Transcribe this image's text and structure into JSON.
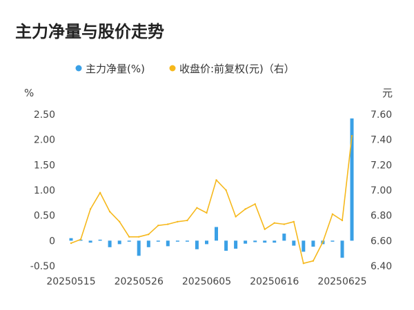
{
  "chart_data": {
    "type": "bar+line",
    "title": "主力净量与股价走势",
    "legend": {
      "position": "top-center",
      "items": [
        {
          "label": "主力净量(%)",
          "color": "#3aa0e6",
          "marker": "circle"
        },
        {
          "label": "收盘价:前复权(元)（右）",
          "color": "#f6b81b",
          "marker": "circle"
        }
      ]
    },
    "left_axis": {
      "unit": "%",
      "ticks": [
        "2.50",
        "2.00",
        "1.50",
        "1.00",
        "0.50",
        "0",
        "-0.50"
      ],
      "min": -0.5,
      "max": 2.5
    },
    "right_axis": {
      "unit": "元",
      "ticks": [
        "7.60",
        "7.40",
        "7.20",
        "7.00",
        "6.80",
        "6.60",
        "6.40"
      ],
      "min": 6.4,
      "max": 7.6
    },
    "x_tick_labels": [
      "20250515",
      "20250526",
      "20250605",
      "20250616",
      "20250625"
    ],
    "grid": false,
    "series": [
      {
        "name": "主力净量(%)",
        "type": "bar",
        "axis": "left",
        "color": "#3aa0e6",
        "values": [
          0.05,
          0.02,
          -0.04,
          0.02,
          -0.13,
          -0.07,
          -0.02,
          -0.3,
          -0.13,
          -0.02,
          -0.11,
          0.0,
          -0.01,
          -0.17,
          -0.07,
          0.27,
          -0.2,
          -0.16,
          -0.06,
          -0.03,
          -0.04,
          -0.04,
          0.14,
          -0.1,
          -0.22,
          -0.12,
          -0.07,
          -0.01,
          -0.34,
          2.42
        ]
      },
      {
        "name": "收盘价:前复权(元)（右）",
        "type": "line",
        "axis": "right",
        "color": "#f6b81b",
        "values": [
          6.58,
          6.61,
          6.85,
          6.98,
          6.83,
          6.75,
          6.63,
          6.63,
          6.65,
          6.72,
          6.73,
          6.75,
          6.76,
          6.86,
          6.82,
          7.08,
          7.0,
          6.79,
          6.85,
          6.89,
          6.69,
          6.74,
          6.73,
          6.75,
          6.42,
          6.44,
          6.59,
          6.81,
          6.76,
          7.43
        ]
      }
    ]
  }
}
